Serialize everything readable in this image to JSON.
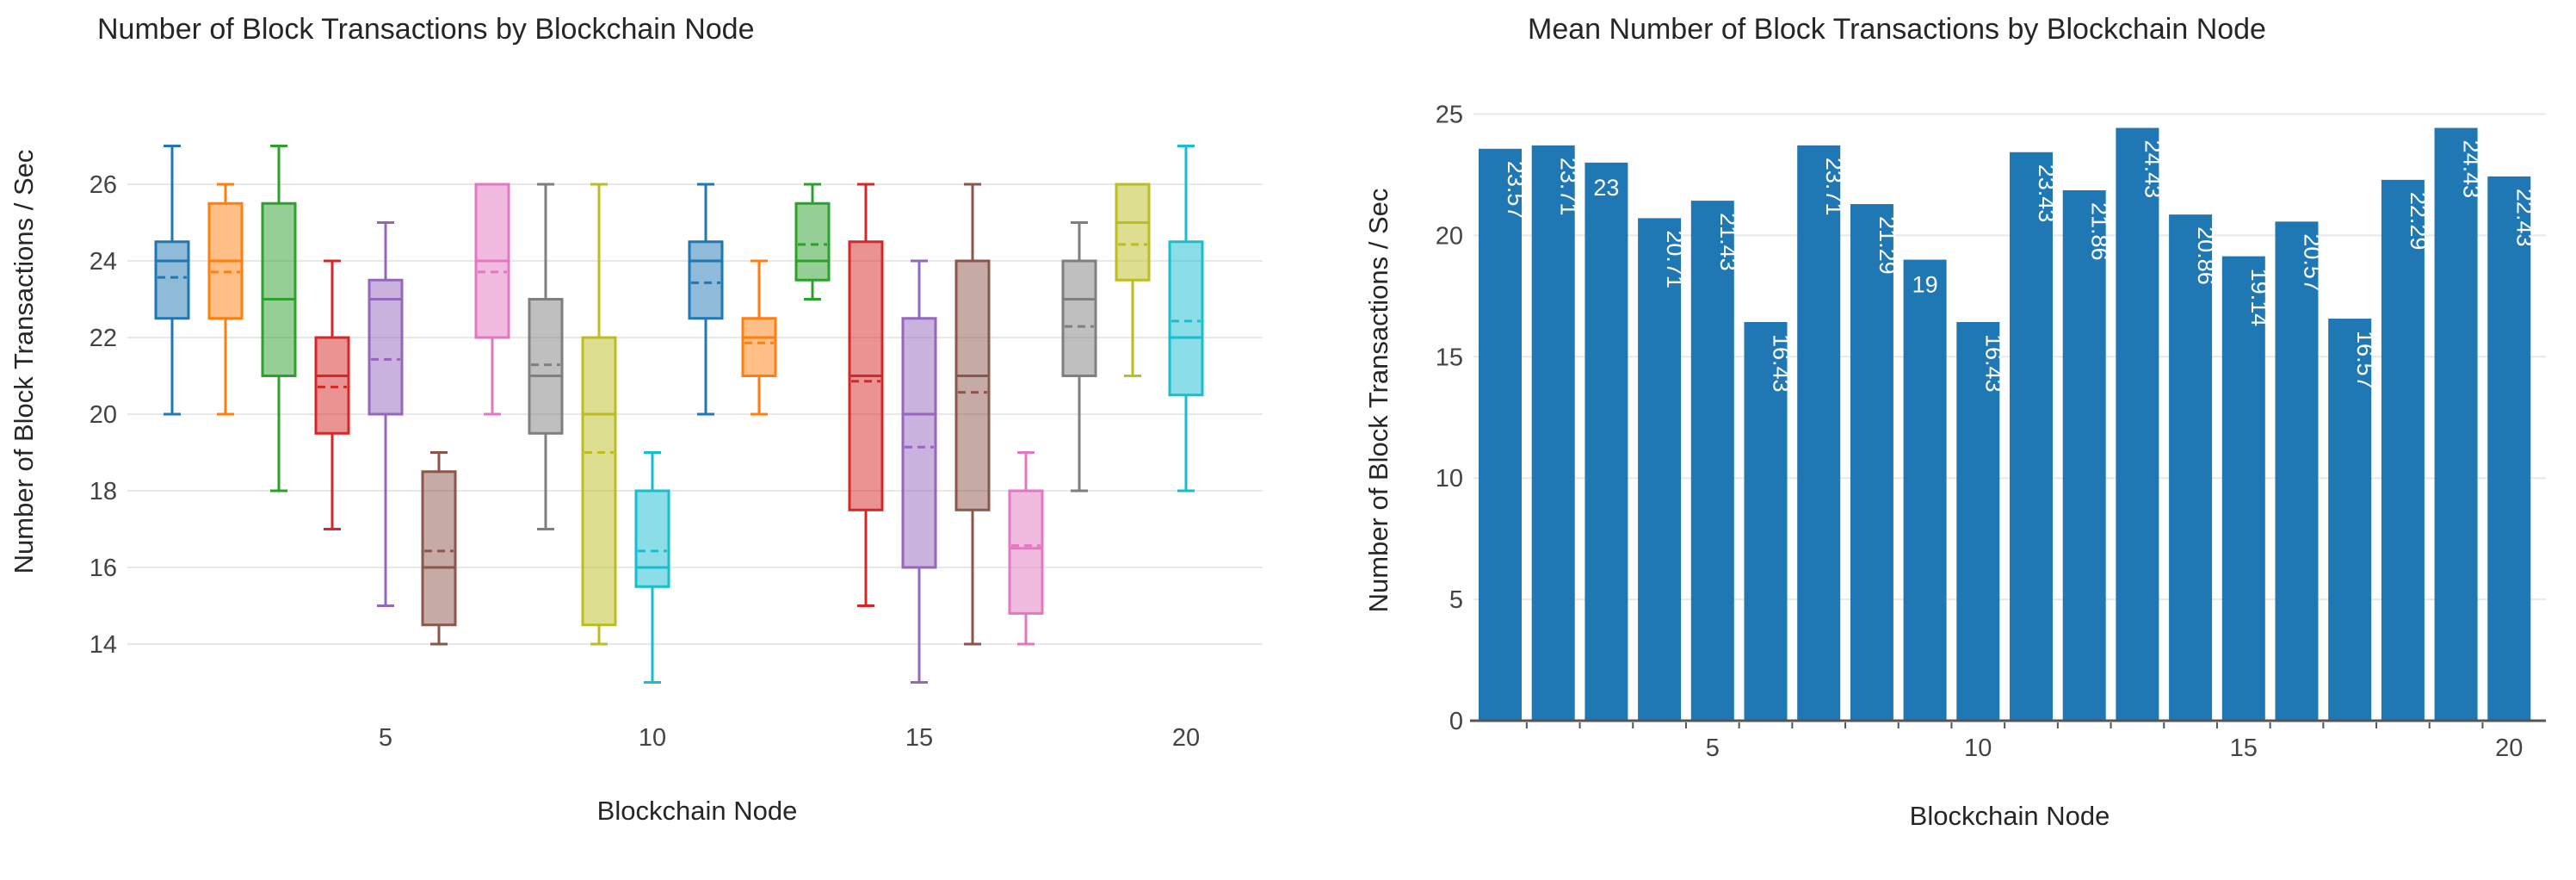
{
  "page": {
    "background": "#ffffff"
  },
  "chart_data": [
    {
      "type": "box",
      "title": "Number of Block Transactions by Blockchain Node",
      "xlabel": "Blockchain Node",
      "ylabel": "Number of Block Transactions / Sec",
      "yticks": [
        14,
        16,
        18,
        20,
        22,
        24,
        26
      ],
      "xticks": [
        5,
        10,
        15,
        20
      ],
      "ylim": [
        12.6,
        27.9
      ],
      "grid": "horizontal-light",
      "mean_style": "dashed-line",
      "series": [
        {
          "node": 1,
          "color": "#1f77b4",
          "min": 20,
          "q1": 22.5,
          "median": 24,
          "q3": 24.5,
          "max": 27,
          "mean": 23.57
        },
        {
          "node": 2,
          "color": "#ff7f0e",
          "min": 20,
          "q1": 22.5,
          "median": 24,
          "q3": 25.5,
          "max": 26,
          "mean": 23.71
        },
        {
          "node": 3,
          "color": "#2ca02c",
          "min": 18,
          "q1": 21,
          "median": 23,
          "q3": 25.5,
          "max": 27,
          "mean": 23.0
        },
        {
          "node": 4,
          "color": "#d62728",
          "min": 17,
          "q1": 19.5,
          "median": 21,
          "q3": 22,
          "max": 24,
          "mean": 20.71
        },
        {
          "node": 5,
          "color": "#9467bd",
          "min": 15,
          "q1": 20,
          "median": 23,
          "q3": 23.5,
          "max": 25,
          "mean": 21.43
        },
        {
          "node": 6,
          "color": "#8c564b",
          "min": 14,
          "q1": 14.5,
          "median": 16,
          "q3": 18.5,
          "max": 19,
          "mean": 16.43
        },
        {
          "node": 7,
          "color": "#e377c2",
          "min": 20,
          "q1": 22,
          "median": 24,
          "q3": 26,
          "max": 26,
          "mean": 23.71
        },
        {
          "node": 8,
          "color": "#7f7f7f",
          "min": 17,
          "q1": 19.5,
          "median": 21,
          "q3": 23,
          "max": 26,
          "mean": 21.29
        },
        {
          "node": 9,
          "color": "#bcbd22",
          "min": 14,
          "q1": 14.5,
          "median": 20,
          "q3": 22,
          "max": 26,
          "mean": 19.0
        },
        {
          "node": 10,
          "color": "#17becf",
          "min": 13,
          "q1": 15.5,
          "median": 16,
          "q3": 18,
          "max": 19,
          "mean": 16.43
        },
        {
          "node": 11,
          "color": "#1f77b4",
          "min": 20,
          "q1": 22.5,
          "median": 24,
          "q3": 24.5,
          "max": 26,
          "mean": 23.43
        },
        {
          "node": 12,
          "color": "#ff7f0e",
          "min": 20,
          "q1": 21,
          "median": 22,
          "q3": 22.5,
          "max": 24,
          "mean": 21.86
        },
        {
          "node": 13,
          "color": "#2ca02c",
          "min": 23,
          "q1": 23.5,
          "median": 24,
          "q3": 25.5,
          "max": 26,
          "mean": 24.43
        },
        {
          "node": 14,
          "color": "#d62728",
          "min": 15,
          "q1": 17.5,
          "median": 21,
          "q3": 24.5,
          "max": 26,
          "mean": 20.86
        },
        {
          "node": 15,
          "color": "#9467bd",
          "min": 13,
          "q1": 16,
          "median": 20,
          "q3": 22.5,
          "max": 24,
          "mean": 19.14
        },
        {
          "node": 16,
          "color": "#8c564b",
          "min": 14,
          "q1": 17.5,
          "median": 21,
          "q3": 24,
          "max": 26,
          "mean": 20.57
        },
        {
          "node": 17,
          "color": "#e377c2",
          "min": 14,
          "q1": 14.8,
          "median": 16.5,
          "q3": 18,
          "max": 19,
          "mean": 16.57
        },
        {
          "node": 18,
          "color": "#7f7f7f",
          "min": 18,
          "q1": 21,
          "median": 23,
          "q3": 24,
          "max": 25,
          "mean": 22.29
        },
        {
          "node": 19,
          "color": "#bcbd22",
          "min": 21,
          "q1": 23.5,
          "median": 25,
          "q3": 26,
          "max": 26,
          "mean": 24.43
        },
        {
          "node": 20,
          "color": "#17becf",
          "min": 18,
          "q1": 20.5,
          "median": 22,
          "q3": 24.5,
          "max": 27,
          "mean": 22.43
        }
      ]
    },
    {
      "type": "bar",
      "title": "Mean Number of Block Transactions by Blockchain Node",
      "xlabel": "Blockchain Node",
      "ylabel": "Number of Block Transactions / Sec",
      "yticks": [
        0,
        5,
        10,
        15,
        20,
        25
      ],
      "xticks": [
        5,
        10,
        15,
        20
      ],
      "ylim": [
        0,
        25
      ],
      "grid": "horizontal-light",
      "bar_color": "#1f77b4",
      "bar_label_color": "#ffffff",
      "axis_line_color": "#555555",
      "categories": [
        1,
        2,
        3,
        4,
        5,
        6,
        7,
        8,
        9,
        10,
        11,
        12,
        13,
        14,
        15,
        16,
        17,
        18,
        19,
        20
      ],
      "values": [
        23.57,
        23.71,
        23,
        20.71,
        21.43,
        16.43,
        23.71,
        21.29,
        19,
        16.43,
        23.43,
        21.86,
        24.43,
        20.86,
        19.14,
        20.57,
        16.57,
        22.29,
        24.43,
        22.43
      ],
      "bar_labels": [
        "23.57",
        "23.71",
        "23",
        "20.71",
        "21.43",
        "16.43",
        "23.71",
        "21.29",
        "19",
        "16.43",
        "23.43",
        "21.86",
        "24.43",
        "20.86",
        "19.14",
        "20.57",
        "16.57",
        "22.29",
        "24.43",
        "22.43"
      ]
    }
  ],
  "style_tokens": {
    "title_color": "#262626",
    "tick_color": "#444444",
    "gridline_color": "#e8e8e8"
  }
}
